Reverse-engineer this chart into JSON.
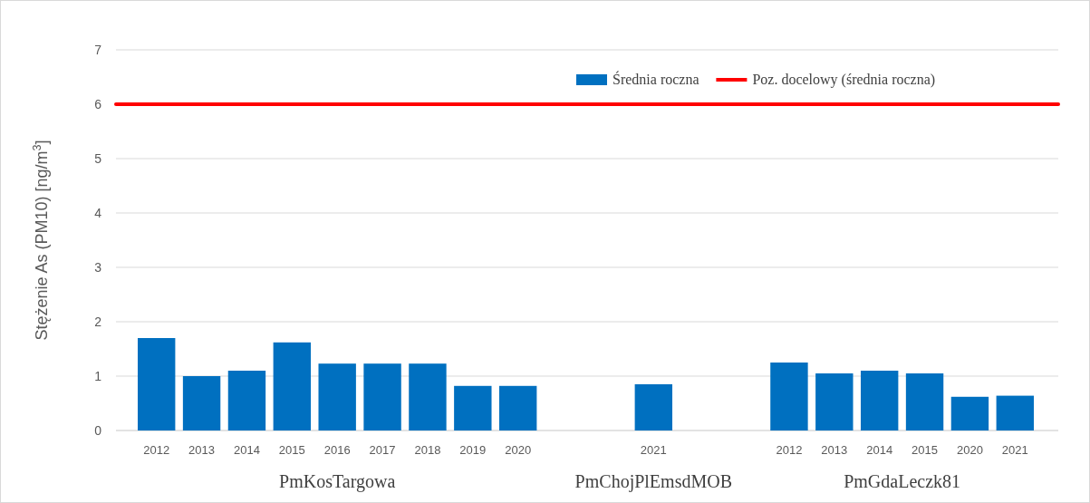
{
  "chart_data": {
    "type": "bar",
    "categories": [
      "2012",
      "2013",
      "2014",
      "2015",
      "2016",
      "2017",
      "2018",
      "2019",
      "2020",
      null,
      null,
      "2021",
      null,
      null,
      "2012",
      "2013",
      "2014",
      "2015",
      "2020",
      "2021"
    ],
    "series": [
      {
        "name": "Średnia roczna",
        "color": "#0070c0",
        "values": [
          1.7,
          1.0,
          1.1,
          1.62,
          1.23,
          1.23,
          1.23,
          0.82,
          0.82,
          null,
          null,
          0.85,
          null,
          null,
          1.25,
          1.05,
          1.1,
          1.05,
          0.62,
          0.64
        ]
      }
    ],
    "ylabel": "Stężenie As (PM10) [ng/m$^{3}$]",
    "ylim": [
      0,
      7
    ],
    "yticks": [
      0,
      1,
      2,
      3,
      4,
      5,
      6,
      7
    ],
    "ref_lines": [
      {
        "axis": "y",
        "value": 6,
        "label": "Poz. docelowy (średnia roczna)",
        "color": "#ff0000"
      }
    ],
    "annotations": [
      "PmKosTargowa",
      "PmChojPlEmsdMOB",
      "PmGdaLeczk81"
    ],
    "grid": "y",
    "legend": "top right"
  }
}
